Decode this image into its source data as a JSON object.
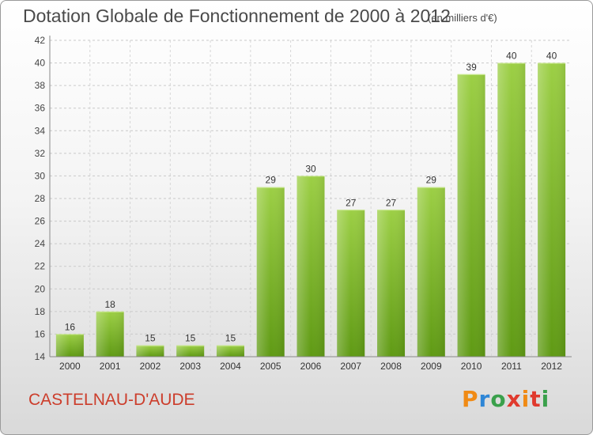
{
  "chart_data": {
    "type": "bar",
    "title": "Dotation Globale de Fonctionnement de 2000 à 2012",
    "subtitle": "(en milliers d'€)",
    "categories": [
      "2000",
      "2001",
      "2002",
      "2003",
      "2004",
      "2005",
      "2006",
      "2007",
      "2008",
      "2009",
      "2010",
      "2011",
      "2012"
    ],
    "values": [
      16,
      18,
      15,
      15,
      15,
      29,
      30,
      27,
      27,
      29,
      39,
      40,
      40
    ],
    "ylim": [
      14,
      42
    ],
    "yticks": [
      14,
      16,
      18,
      20,
      22,
      24,
      26,
      28,
      30,
      32,
      34,
      36,
      38,
      40,
      42
    ],
    "grid": true,
    "xlabel": "",
    "ylabel": "",
    "bar_color": "#7cb52a"
  },
  "footer": {
    "place": "CASTELNAU-D'AUDE",
    "logo_letters": [
      "P",
      "r",
      "o",
      "x",
      "i",
      "t",
      "i"
    ]
  },
  "colors": {
    "place_text": "#cc3d2b",
    "logo": [
      "#f08a14",
      "#2e86d6",
      "#3aa04b",
      "#e03a2e"
    ]
  }
}
